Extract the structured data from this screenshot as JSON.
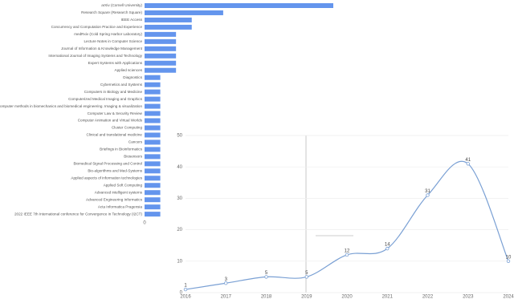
{
  "chart_data": [
    {
      "type": "bar",
      "orientation": "horizontal",
      "color": "#6495ed",
      "categories": [
        "arXiv (Cornell University)",
        "Research Square (Research Square)",
        "IEEE Access",
        "Concurrency and Computation Practice and Experience",
        "medRxiv (Cold Spring Harbor Laboratory)",
        "Lecture Notes in Computer Science",
        "Journal of Information & Knowledge Management",
        "International Journal of Imaging Systems and Technology",
        "Expert Systems with Applications",
        "Applied sciences",
        "Diagnostics",
        "Cybernetics and Systems",
        "Computers in Biology and Medicine",
        "Computerized Medical Imaging and Graphics",
        "Computer methods in biomechanics and biomedical engineering. Imaging & visualization",
        "Computer Law & Security Review",
        "Computer Animation and Virtual Worlds",
        "Cluster Computing",
        "Clinical and translational medicine",
        "Cancers",
        "Briefings in Bioinformatics",
        "Biosensors",
        "Biomedical Signal Processing and Control",
        "Bio-algorithms and Med-Systems",
        "Applied aspects of information technologies",
        "Applied Soft Computing",
        "Advanced intelligent systems",
        "Advanced Engineering Informatics",
        "Acta Informatica Pragensia",
        "2022 IEEE 7th International conference for Convergence in Technology (I2CT)"
      ],
      "values": [
        12,
        5,
        3,
        3,
        2,
        2,
        2,
        2,
        2,
        2,
        1,
        1,
        1,
        1,
        1,
        1,
        1,
        1,
        1,
        1,
        1,
        1,
        1,
        1,
        1,
        1,
        1,
        1,
        1,
        1
      ],
      "xlim": [
        0,
        12
      ],
      "xticks": [
        0
      ]
    },
    {
      "type": "line",
      "smooth": true,
      "color": "#7aa0d4",
      "grid": true,
      "x": [
        2016,
        2017,
        2018,
        2019,
        2020,
        2021,
        2022,
        2023,
        2024
      ],
      "values": [
        1,
        3,
        5,
        5,
        12,
        14,
        31,
        41,
        10
      ],
      "xlim": [
        2016,
        2024
      ],
      "xticks": [
        2016,
        2017,
        2018,
        2019,
        2020,
        2021,
        2022,
        2023,
        2024
      ],
      "ylim": [
        0,
        50
      ],
      "yticks": [
        0,
        10,
        20,
        30,
        40,
        50
      ]
    }
  ]
}
